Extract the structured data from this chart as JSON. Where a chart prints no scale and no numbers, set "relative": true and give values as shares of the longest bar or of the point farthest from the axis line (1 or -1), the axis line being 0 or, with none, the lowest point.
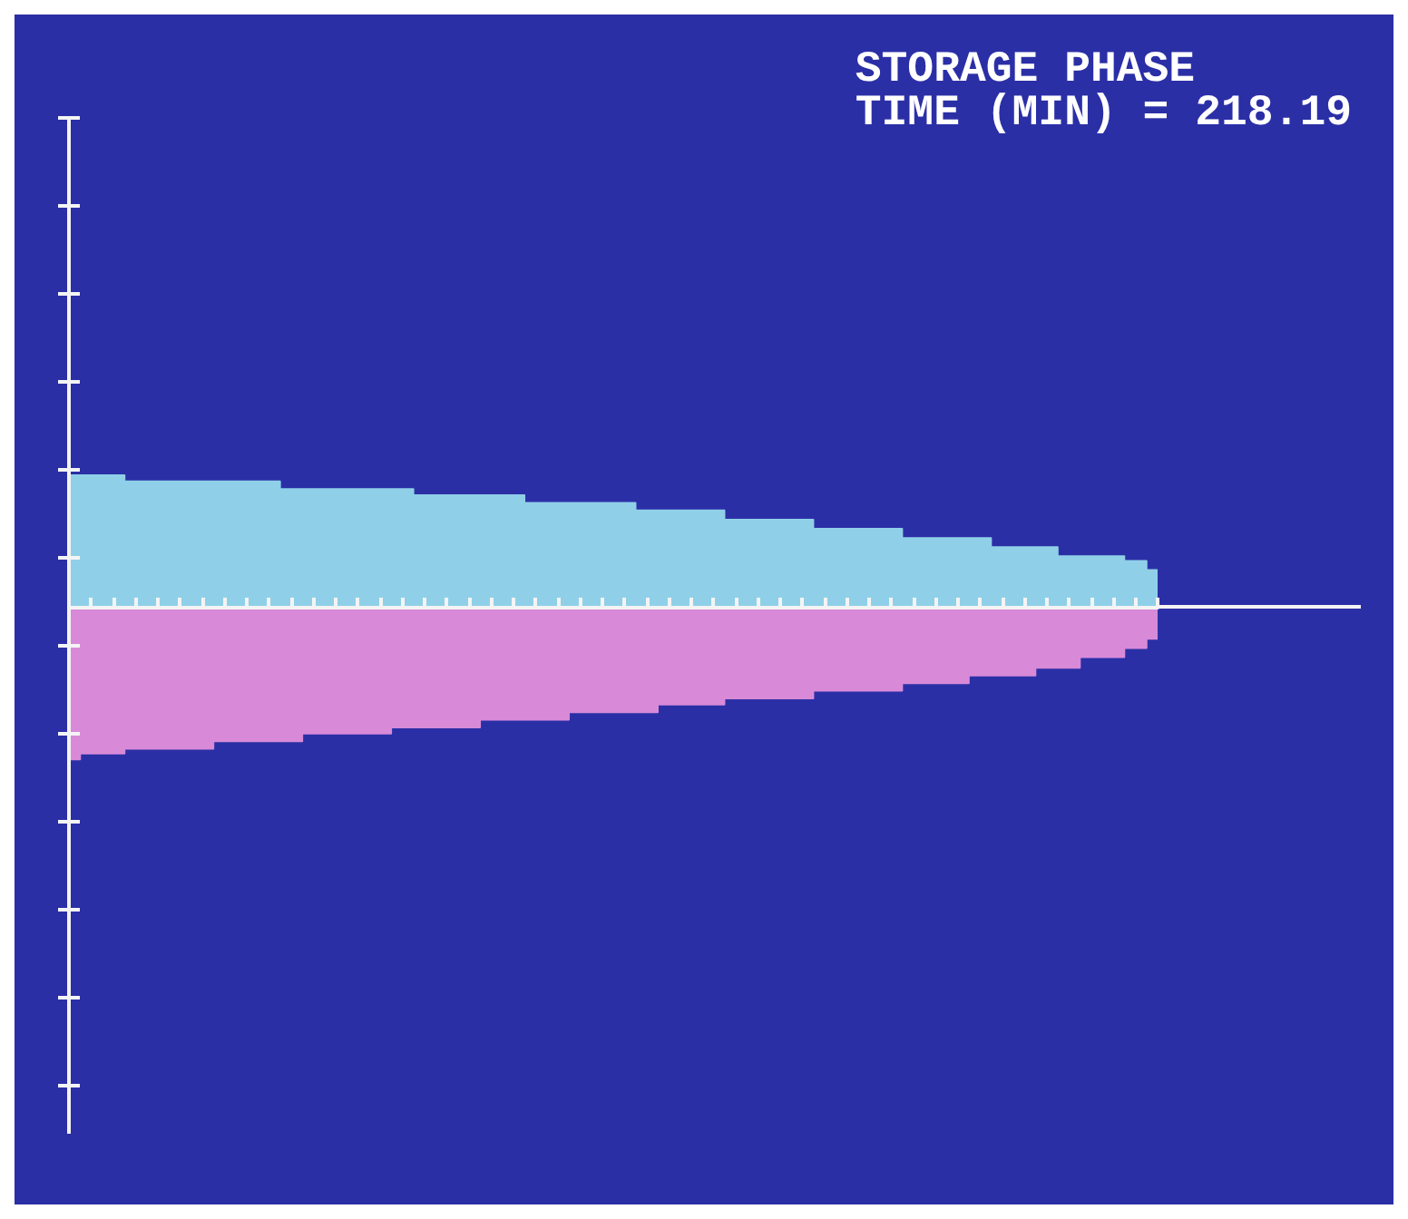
{
  "chart_data": {
    "type": "area",
    "title": "STORAGE PHASE",
    "annotations": [
      "TIME (MIN) = 218.19"
    ],
    "relative": true,
    "grid": false,
    "categories": [
      null,
      null,
      null,
      null,
      null,
      null,
      null,
      null,
      null,
      null,
      null,
      null,
      null,
      null,
      null,
      null,
      null,
      null,
      null,
      null,
      null,
      null,
      null,
      null,
      null,
      null,
      null,
      null,
      null,
      null,
      null,
      null,
      null,
      null,
      null,
      null,
      null,
      null,
      null,
      null,
      null,
      null,
      null,
      null,
      null,
      null,
      null,
      null,
      null,
      null
    ],
    "series": [
      {
        "color": "#8fd0e8",
        "values": [
          0.86,
          0.86,
          0.86,
          0.82,
          0.82,
          0.82,
          0.82,
          0.82,
          0.82,
          0.82,
          0.77,
          0.77,
          0.77,
          0.77,
          0.77,
          0.77,
          0.73,
          0.73,
          0.73,
          0.73,
          0.73,
          0.68,
          0.68,
          0.68,
          0.68,
          0.68,
          0.63,
          0.63,
          0.63,
          0.63,
          0.57,
          0.57,
          0.57,
          0.57,
          0.51,
          0.51,
          0.51,
          0.51,
          0.45,
          0.45,
          0.45,
          0.45,
          0.39,
          0.39,
          0.39,
          0.33,
          0.33,
          0.33,
          0.3,
          0.24
        ]
      },
      {
        "color": "#d88ad8",
        "values": [
          -1,
          -0.96,
          -0.96,
          -0.93,
          -0.93,
          -0.93,
          -0.93,
          -0.88,
          -0.88,
          -0.88,
          -0.88,
          -0.83,
          -0.83,
          -0.83,
          -0.83,
          -0.79,
          -0.79,
          -0.79,
          -0.79,
          -0.74,
          -0.74,
          -0.74,
          -0.74,
          -0.69,
          -0.69,
          -0.69,
          -0.69,
          -0.64,
          -0.64,
          -0.64,
          -0.6,
          -0.6,
          -0.6,
          -0.6,
          -0.55,
          -0.55,
          -0.55,
          -0.55,
          -0.5,
          -0.5,
          -0.5,
          -0.45,
          -0.45,
          -0.45,
          -0.4,
          -0.4,
          -0.33,
          -0.33,
          -0.27,
          -0.21
        ]
      }
    ]
  }
}
